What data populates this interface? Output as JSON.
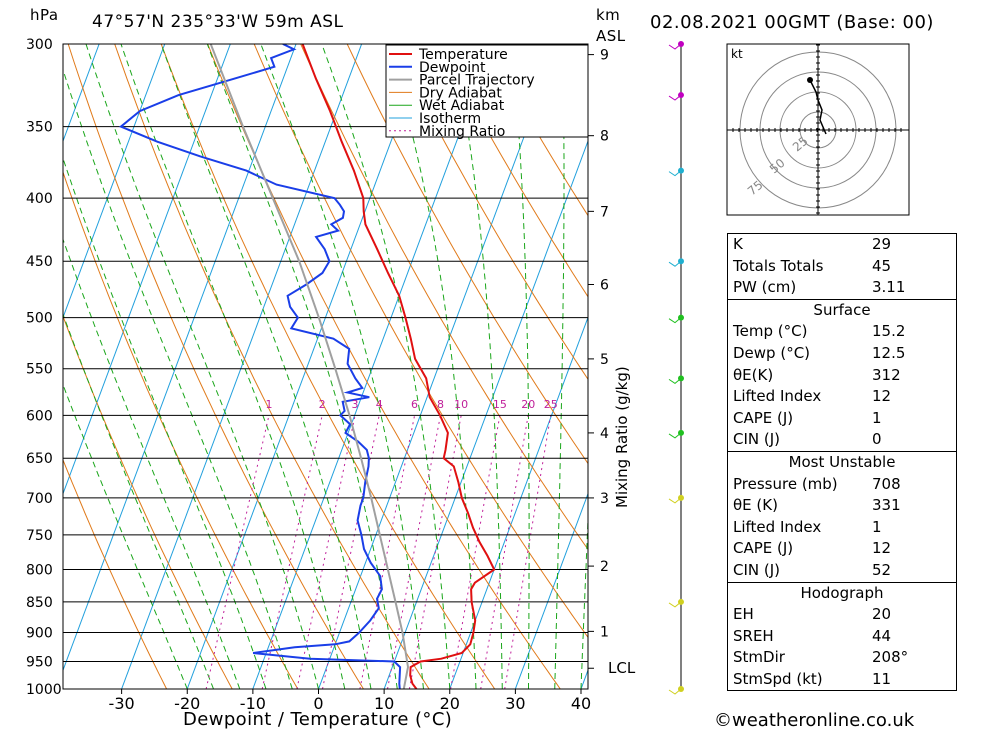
{
  "header": {
    "location": "47°57'N  235°33'W  59m  ASL",
    "datetime": "02.08.2021  00GMT  (Base: 00)",
    "unit_left": "hPa",
    "unit_right_km": "km",
    "unit_right_asl": "ASL"
  },
  "chart_data": {
    "type": "line",
    "title": "47°57'N  235°33'W  59m  ASL",
    "xlabel": "Dewpoint / Temperature (°C)",
    "ylabel": "hPa",
    "y2label": "Mixing Ratio (g/kg)",
    "xlim": [
      -40,
      40
    ],
    "ylim": [
      1000,
      300
    ],
    "yscale": "log",
    "x_ticks": [
      -30,
      -20,
      -10,
      0,
      10,
      20,
      30,
      40
    ],
    "pressure_ticks": [
      300,
      350,
      400,
      450,
      500,
      550,
      600,
      650,
      700,
      750,
      800,
      850,
      900,
      950,
      1000
    ],
    "height_ticks_km": [
      1,
      2,
      3,
      4,
      5,
      6,
      7,
      8,
      9
    ],
    "height_tick_pressures": [
      898,
      795,
      700,
      620,
      540,
      470,
      410,
      356,
      306
    ],
    "lcl_label": "LCL",
    "lcl_pressure": 962,
    "mixing_ratio_labels": [
      "1",
      "2",
      "3",
      "4",
      "6",
      "8",
      "10",
      "15",
      "20",
      "25"
    ],
    "mixing_ratio_values": [
      1,
      2,
      3,
      4,
      6,
      8,
      10,
      15,
      20,
      25
    ],
    "legend": [
      "Temperature",
      "Dewpoint",
      "Parcel Trajectory",
      "Dry Adiabat",
      "Wet Adiabat",
      "Isotherm",
      "Mixing Ratio"
    ],
    "series": [
      {
        "name": "Temperature",
        "color": "#e01010",
        "p": [
          1003,
          990,
          975,
          960,
          950,
          945,
          935,
          920,
          900,
          880,
          850,
          830,
          820,
          800,
          780,
          760,
          740,
          720,
          700,
          680,
          660,
          650,
          640,
          620,
          600,
          580,
          560,
          540,
          520,
          500,
          480,
          460,
          440,
          420,
          410,
          400,
          380,
          360,
          340,
          320,
          300
        ],
        "t": [
          15.2,
          14.0,
          13.2,
          12.8,
          14.0,
          17.0,
          19.8,
          20.6,
          20.4,
          20.0,
          18.4,
          17.6,
          17.8,
          20.0,
          18.2,
          16.2,
          14.4,
          12.8,
          11.0,
          9.6,
          8.0,
          6.0,
          5.8,
          5.2,
          3.0,
          0.4,
          -1.2,
          -4.0,
          -5.8,
          -7.8,
          -10.0,
          -13.0,
          -16.0,
          -19.2,
          -20.2,
          -21.0,
          -24.0,
          -27.5,
          -31.0,
          -35.0,
          -39.0
        ]
      },
      {
        "name": "Dewpoint",
        "color": "#1a3ee8",
        "p": [
          1003,
          990,
          975,
          960,
          950,
          945,
          935,
          925,
          920,
          915,
          900,
          880,
          860,
          845,
          830,
          810,
          790,
          770,
          750,
          730,
          710,
          700,
          680,
          660,
          650,
          640,
          630,
          620,
          610,
          600,
          595,
          585,
          580,
          575,
          570,
          560,
          545,
          530,
          520,
          510,
          500,
          490,
          480,
          470,
          460,
          450,
          440,
          430,
          425,
          420,
          415,
          410,
          405,
          400,
          390,
          380,
          370,
          360,
          350,
          340,
          330,
          320,
          313,
          308,
          303,
          300
        ],
        "t": [
          12.5,
          12.0,
          11.6,
          11.2,
          10.0,
          -3.0,
          -12.0,
          -6.0,
          0.0,
          2.0,
          3.0,
          4.0,
          4.6,
          3.8,
          4.0,
          3.0,
          0.8,
          -1.0,
          -2.2,
          -3.6,
          -4.0,
          -4.0,
          -4.6,
          -5.0,
          -5.4,
          -6.2,
          -8.0,
          -10.4,
          -10.2,
          -12.2,
          -11.8,
          -12.6,
          -8.8,
          -12.4,
          -10.4,
          -12.0,
          -14.0,
          -14.6,
          -17.6,
          -24.6,
          -24.2,
          -26.0,
          -27.0,
          -24.8,
          -23.0,
          -22.6,
          -24.0,
          -26.0,
          -23.0,
          -24.4,
          -23.0,
          -23.2,
          -24.2,
          -25.4,
          -35.0,
          -40.4,
          -48.2,
          -55.6,
          -62.0,
          -60.0,
          -55.0,
          -47.4,
          -42.0,
          -43.0,
          -40.0,
          -42.0
        ]
      },
      {
        "name": "Parcel Trajectory",
        "color": "#a0a0a0",
        "p": [
          1000,
          960,
          900,
          850,
          800,
          750,
          700,
          650,
          600,
          550,
          500,
          450,
          400,
          350,
          300
        ],
        "t": [
          13.0,
          12.4,
          9.6,
          6.8,
          3.8,
          0.6,
          -2.8,
          -6.6,
          -10.8,
          -15.6,
          -21.0,
          -27.2,
          -34.8,
          -43.4,
          -53.0
        ]
      }
    ]
  },
  "hodograph": {
    "unit": "kt",
    "ring_labels": [
      "25",
      "50",
      "75"
    ]
  },
  "indices": {
    "general": [
      {
        "label": "K",
        "value": "29"
      },
      {
        "label": "Totals Totals",
        "value": "45"
      },
      {
        "label": "PW (cm)",
        "value": "3.11"
      }
    ],
    "surface": {
      "title": "Surface",
      "rows": [
        {
          "label": "Temp (°C)",
          "value": "15.2"
        },
        {
          "label": "Dewp (°C)",
          "value": "12.5"
        },
        {
          "label": "θE(K)",
          "value": "312"
        },
        {
          "label": "Lifted Index",
          "value": "12"
        },
        {
          "label": "CAPE (J)",
          "value": "1"
        },
        {
          "label": "CIN (J)",
          "value": "0"
        }
      ]
    },
    "most_unstable": {
      "title": "Most Unstable",
      "rows": [
        {
          "label": "Pressure (mb)",
          "value": "708"
        },
        {
          "label": "θE (K)",
          "value": "331"
        },
        {
          "label": "Lifted Index",
          "value": "1"
        },
        {
          "label": "CAPE (J)",
          "value": "12"
        },
        {
          "label": "CIN (J)",
          "value": "52"
        }
      ]
    },
    "hodograph": {
      "title": "Hodograph",
      "rows": [
        {
          "label": "EH",
          "value": "20"
        },
        {
          "label": "SREH",
          "value": "44"
        },
        {
          "label": "StmDir",
          "value": "208°"
        },
        {
          "label": "StmSpd (kt)",
          "value": "11"
        }
      ]
    }
  },
  "copyright": "©weatheronline.co.uk",
  "colors": {
    "temperature": "#e01010",
    "dewpoint": "#1a3ee8",
    "parcel": "#a0a0a0",
    "dry_adiabat": "#e07a1a",
    "wet_adiabat": "#1aa61a",
    "isotherm": "#22a0dd",
    "mixing_ratio": "#c0209a"
  }
}
